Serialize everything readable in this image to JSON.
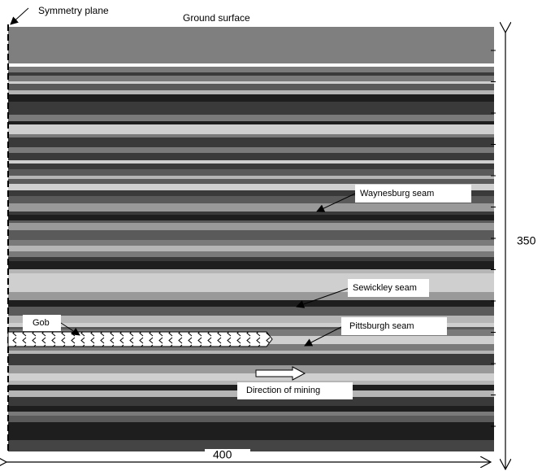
{
  "labels": {
    "symmetry_plane": "Symmetry plane",
    "ground_surface": "Ground surface",
    "waynesburg": "Waynesburg seam",
    "sewickley": "Sewickley seam",
    "pittsburgh": "Pittsburgh seam",
    "gob": "Gob",
    "direction": "Direction of mining"
  },
  "dimensions": {
    "height": "350",
    "width": "400"
  }
}
